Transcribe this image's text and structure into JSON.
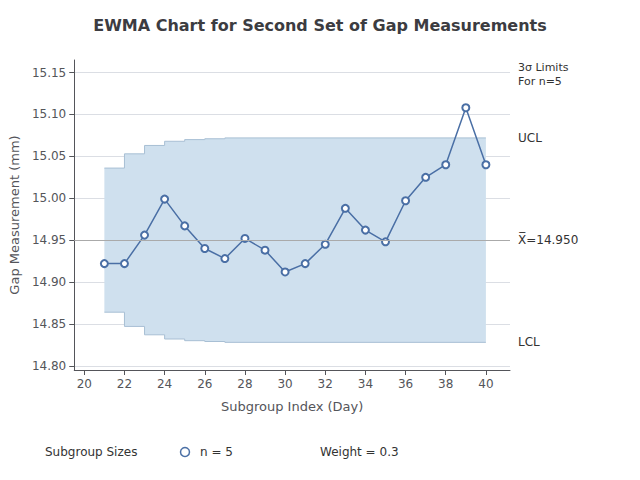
{
  "chart_data": {
    "type": "line",
    "title": "EWMA Chart for Second Set of Gap Measurements",
    "x_label": "Subgroup Index (Day)",
    "y_label": "Gap Measurement (mm)",
    "x": [
      21,
      22,
      23,
      24,
      25,
      26,
      27,
      28,
      29,
      30,
      31,
      32,
      33,
      34,
      35,
      36,
      37,
      38,
      39,
      40
    ],
    "values": [
      14.922,
      14.922,
      14.956,
      14.999,
      14.967,
      14.94,
      14.928,
      14.952,
      14.938,
      14.912,
      14.922,
      14.945,
      14.988,
      14.962,
      14.948,
      14.997,
      15.025,
      15.04,
      15.108,
      15.04
    ],
    "color": "#4a6fa5",
    "marker": "circle",
    "xlim": [
      19.5,
      41.2
    ],
    "xticks": [
      20,
      22,
      24,
      26,
      28,
      30,
      32,
      34,
      36,
      38,
      40
    ],
    "ylim": [
      14.795,
      15.165
    ],
    "yticks": [
      {
        "value": 14.8,
        "label": "14.80"
      },
      {
        "value": 14.85,
        "label": "14.85"
      },
      {
        "value": 14.9,
        "label": "14.90"
      },
      {
        "value": 14.95,
        "label": "14.95"
      },
      {
        "value": 15.0,
        "label": "15.00"
      },
      {
        "value": 15.05,
        "label": "15.05"
      },
      {
        "value": 15.1,
        "label": "15.10"
      },
      {
        "value": 15.15,
        "label": "15.15"
      }
    ],
    "grid": true,
    "center_line": {
      "value": 14.95,
      "label": "X̅=14.950",
      "color": "#aaaaaa"
    },
    "control_limits": {
      "label": "3σ Limits\nFor n=5",
      "color": "#cfe0ee",
      "upper": {
        "label": "UCL",
        "color": "#a8bfd4",
        "x": [
          21,
          22,
          22,
          23,
          23,
          24,
          24,
          25,
          25,
          26,
          26,
          27,
          27,
          40
        ],
        "values": [
          15.036,
          15.036,
          15.053,
          15.053,
          15.063,
          15.063,
          15.068,
          15.068,
          15.07,
          15.07,
          15.071,
          15.071,
          15.072,
          15.072
        ]
      },
      "lower": {
        "label": "LCL",
        "color": "#a8bfd4",
        "x": [
          21,
          22,
          22,
          23,
          23,
          24,
          24,
          25,
          25,
          26,
          26,
          27,
          27,
          40
        ],
        "values": [
          14.864,
          14.864,
          14.847,
          14.847,
          14.837,
          14.837,
          14.832,
          14.832,
          14.83,
          14.83,
          14.829,
          14.829,
          14.828,
          14.828
        ]
      }
    },
    "legend_note": {
      "title": "Subgroup Sizes",
      "marker": "circle",
      "entries": [
        "n = 5",
        "Weight = 0.3"
      ]
    }
  }
}
